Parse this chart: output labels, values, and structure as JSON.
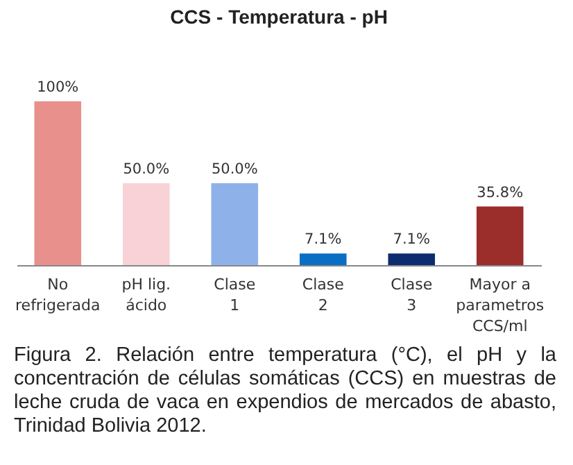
{
  "chart_data": {
    "type": "bar",
    "title": "CCS - Temperatura - pH",
    "categories": [
      "No\nrefrigerada",
      "pH lig.\nácido",
      "Clase\n1",
      "Clase\n2",
      "Clase\n3",
      "Mayor a\nparametros\nCCS/ml"
    ],
    "values": [
      100,
      50,
      50,
      7.1,
      7.1,
      35.8
    ],
    "colors": [
      "#e8918c",
      "#f8d2d6",
      "#8eb1ea",
      "#0a6fc4",
      "#0d2d6e",
      "#9b2d2a"
    ],
    "value_labels": [
      "100%",
      "50.0%",
      "50.0%",
      "7.1%",
      "7.1%",
      "35.8%"
    ],
    "annotations": [
      "Figura 2. Relación entre temperatura (°C), el pH y la concentración de células somáticas (CCS) en muestras de leche cruda de vaca en expendios de mercados de abasto, Trinidad Bolivia 2012."
    ]
  }
}
